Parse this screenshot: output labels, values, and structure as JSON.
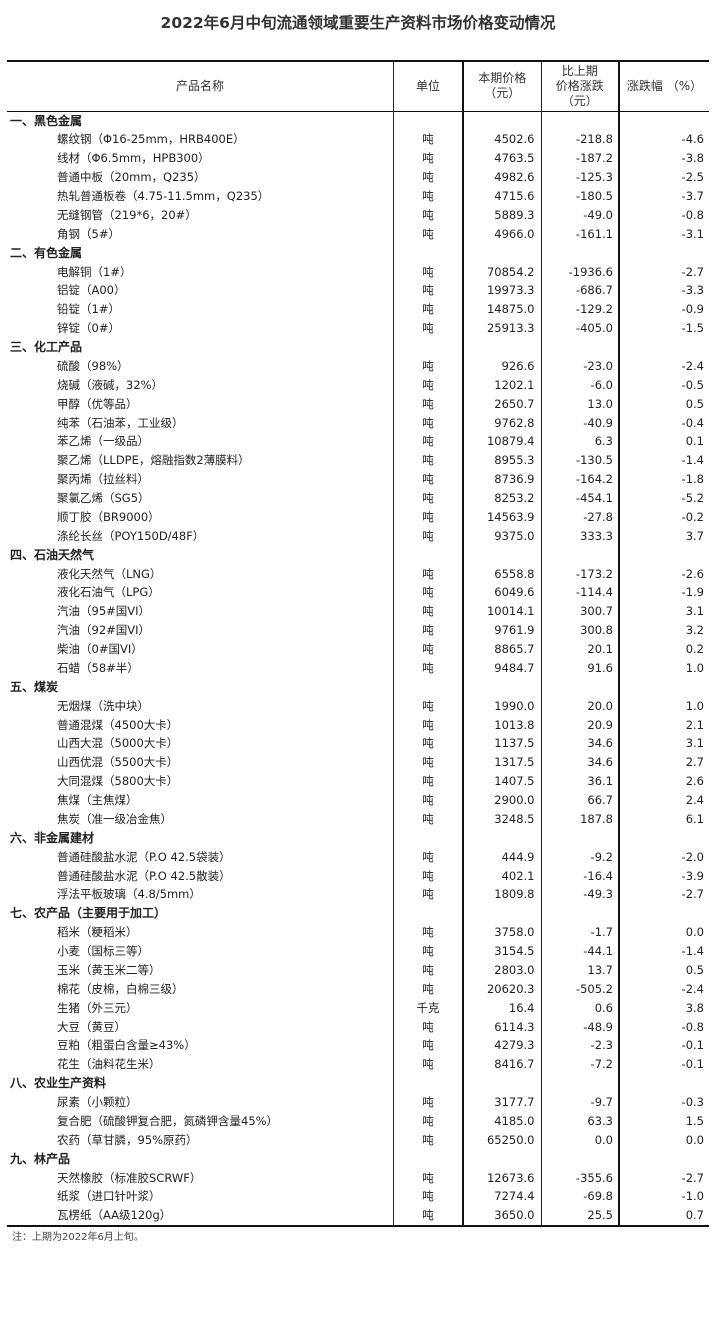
{
  "title": "2022年6月中旬流通领域重要生产资料市场价格变动情况",
  "headers": {
    "name": "产品名称",
    "unit": "单位",
    "price": [
      "本期价格",
      "（元）"
    ],
    "change": [
      "比上期",
      "价格涨跌",
      "（元）"
    ],
    "pct": "涨跌幅 （%）"
  },
  "sections": [
    {
      "label": "一、黑色金属",
      "items": [
        {
          "name": "螺纹钢（Φ16-25mm，HRB400E）",
          "unit": "吨",
          "price": "4502.6",
          "change": "-218.8",
          "pct": "-4.6"
        },
        {
          "name": "线材（Φ6.5mm，HPB300）",
          "unit": "吨",
          "price": "4763.5",
          "change": "-187.2",
          "pct": "-3.8"
        },
        {
          "name": "普通中板（20mm，Q235）",
          "unit": "吨",
          "price": "4982.6",
          "change": "-125.3",
          "pct": "-2.5"
        },
        {
          "name": "热轧普通板卷（4.75-11.5mm，Q235）",
          "unit": "吨",
          "price": "4715.6",
          "change": "-180.5",
          "pct": "-3.7"
        },
        {
          "name": "无缝钢管（219*6，20#）",
          "unit": "吨",
          "price": "5889.3",
          "change": "-49.0",
          "pct": "-0.8"
        },
        {
          "name": "角钢（5#）",
          "unit": "吨",
          "price": "4966.0",
          "change": "-161.1",
          "pct": "-3.1"
        }
      ]
    },
    {
      "label": "二、有色金属",
      "items": [
        {
          "name": "电解铜（1#）",
          "unit": "吨",
          "price": "70854.2",
          "change": "-1936.6",
          "pct": "-2.7"
        },
        {
          "name": "铝锭（A00）",
          "unit": "吨",
          "price": "19973.3",
          "change": "-686.7",
          "pct": "-3.3"
        },
        {
          "name": "铅锭（1#）",
          "unit": "吨",
          "price": "14875.0",
          "change": "-129.2",
          "pct": "-0.9"
        },
        {
          "name": "锌锭（0#）",
          "unit": "吨",
          "price": "25913.3",
          "change": "-405.0",
          "pct": "-1.5"
        }
      ]
    },
    {
      "label": "三、化工产品",
      "items": [
        {
          "name": "硫酸（98%）",
          "unit": "吨",
          "price": "926.6",
          "change": "-23.0",
          "pct": "-2.4"
        },
        {
          "name": "烧碱（液碱，32%）",
          "unit": "吨",
          "price": "1202.1",
          "change": "-6.0",
          "pct": "-0.5"
        },
        {
          "name": "甲醇（优等品）",
          "unit": "吨",
          "price": "2650.7",
          "change": "13.0",
          "pct": "0.5"
        },
        {
          "name": "纯苯（石油苯，工业级）",
          "unit": "吨",
          "price": "9762.8",
          "change": "-40.9",
          "pct": "-0.4"
        },
        {
          "name": "苯乙烯（一级品）",
          "unit": "吨",
          "price": "10879.4",
          "change": "6.3",
          "pct": "0.1"
        },
        {
          "name": "聚乙烯（LLDPE，熔融指数2薄膜料）",
          "unit": "吨",
          "price": "8955.3",
          "change": "-130.5",
          "pct": "-1.4"
        },
        {
          "name": "聚丙烯（拉丝料）",
          "unit": "吨",
          "price": "8736.9",
          "change": "-164.2",
          "pct": "-1.8"
        },
        {
          "name": "聚氯乙烯（SG5）",
          "unit": "吨",
          "price": "8253.2",
          "change": "-454.1",
          "pct": "-5.2"
        },
        {
          "name": "顺丁胶（BR9000）",
          "unit": "吨",
          "price": "14563.9",
          "change": "-27.8",
          "pct": "-0.2"
        },
        {
          "name": "涤纶长丝（POY150D/48F）",
          "unit": "吨",
          "price": "9375.0",
          "change": "333.3",
          "pct": "3.7"
        }
      ]
    },
    {
      "label": "四、石油天然气",
      "items": [
        {
          "name": "液化天然气（LNG）",
          "unit": "吨",
          "price": "6558.8",
          "change": "-173.2",
          "pct": "-2.6"
        },
        {
          "name": "液化石油气（LPG）",
          "unit": "吨",
          "price": "6049.6",
          "change": "-114.4",
          "pct": "-1.9"
        },
        {
          "name": "汽油（95#国VI）",
          "unit": "吨",
          "price": "10014.1",
          "change": "300.7",
          "pct": "3.1"
        },
        {
          "name": "汽油（92#国VI）",
          "unit": "吨",
          "price": "9761.9",
          "change": "300.8",
          "pct": "3.2"
        },
        {
          "name": "柴油（0#国VI）",
          "unit": "吨",
          "price": "8865.7",
          "change": "20.1",
          "pct": "0.2"
        },
        {
          "name": "石蜡（58#半）",
          "unit": "吨",
          "price": "9484.7",
          "change": "91.6",
          "pct": "1.0"
        }
      ]
    },
    {
      "label": "五、煤炭",
      "items": [
        {
          "name": "无烟煤（洗中块）",
          "unit": "吨",
          "price": "1990.0",
          "change": "20.0",
          "pct": "1.0"
        },
        {
          "name": "普通混煤（4500大卡）",
          "unit": "吨",
          "price": "1013.8",
          "change": "20.9",
          "pct": "2.1"
        },
        {
          "name": "山西大混（5000大卡）",
          "unit": "吨",
          "price": "1137.5",
          "change": "34.6",
          "pct": "3.1"
        },
        {
          "name": "山西优混（5500大卡）",
          "unit": "吨",
          "price": "1317.5",
          "change": "34.6",
          "pct": "2.7"
        },
        {
          "name": "大同混煤（5800大卡）",
          "unit": "吨",
          "price": "1407.5",
          "change": "36.1",
          "pct": "2.6"
        },
        {
          "name": "焦煤（主焦煤）",
          "unit": "吨",
          "price": "2900.0",
          "change": "66.7",
          "pct": "2.4"
        },
        {
          "name": "焦炭（准一级冶金焦）",
          "unit": "吨",
          "price": "3248.5",
          "change": "187.8",
          "pct": "6.1"
        }
      ]
    },
    {
      "label": "六、非金属建材",
      "items": [
        {
          "name": "普通硅酸盐水泥（P.O 42.5袋装）",
          "unit": "吨",
          "price": "444.9",
          "change": "-9.2",
          "pct": "-2.0"
        },
        {
          "name": "普通硅酸盐水泥（P.O 42.5散装）",
          "unit": "吨",
          "price": "402.1",
          "change": "-16.4",
          "pct": "-3.9"
        },
        {
          "name": "浮法平板玻璃（4.8/5mm）",
          "unit": "吨",
          "price": "1809.8",
          "change": "-49.3",
          "pct": "-2.7"
        }
      ]
    },
    {
      "label": "七、农产品（主要用于加工）",
      "items": [
        {
          "name": "稻米（粳稻米）",
          "unit": "吨",
          "price": "3758.0",
          "change": "-1.7",
          "pct": "0.0"
        },
        {
          "name": "小麦（国标三等）",
          "unit": "吨",
          "price": "3154.5",
          "change": "-44.1",
          "pct": "-1.4"
        },
        {
          "name": "玉米（黄玉米二等）",
          "unit": "吨",
          "price": "2803.0",
          "change": "13.7",
          "pct": "0.5"
        },
        {
          "name": "棉花（皮棉，白棉三级）",
          "unit": "吨",
          "price": "20620.3",
          "change": "-505.2",
          "pct": "-2.4"
        },
        {
          "name": "生猪（外三元）",
          "unit": "千克",
          "price": "16.4",
          "change": "0.6",
          "pct": "3.8"
        },
        {
          "name": "大豆（黄豆）",
          "unit": "吨",
          "price": "6114.3",
          "change": "-48.9",
          "pct": "-0.8"
        },
        {
          "name": "豆粕（粗蛋白含量≥43%）",
          "unit": "吨",
          "price": "4279.3",
          "change": "-2.3",
          "pct": "-0.1"
        },
        {
          "name": "花生（油料花生米）",
          "unit": "吨",
          "price": "8416.7",
          "change": "-7.2",
          "pct": "-0.1"
        }
      ]
    },
    {
      "label": "八、农业生产资料",
      "items": [
        {
          "name": "尿素（小颗粒）",
          "unit": "吨",
          "price": "3177.7",
          "change": "-9.7",
          "pct": "-0.3"
        },
        {
          "name": "复合肥（硫酸钾复合肥，氮磷钾含量45%）",
          "unit": "吨",
          "price": "4185.0",
          "change": "63.3",
          "pct": "1.5"
        },
        {
          "name": "农药（草甘膦，95%原药）",
          "unit": "吨",
          "price": "65250.0",
          "change": "0.0",
          "pct": "0.0"
        }
      ]
    },
    {
      "label": "九、林产品",
      "items": [
        {
          "name": "天然橡胶（标准胶SCRWF）",
          "unit": "吨",
          "price": "12673.6",
          "change": "-355.6",
          "pct": "-2.7"
        },
        {
          "name": "纸浆（进口针叶浆）",
          "unit": "吨",
          "price": "7274.4",
          "change": "-69.8",
          "pct": "-1.0"
        },
        {
          "name": "瓦楞纸（AA级120g）",
          "unit": "吨",
          "price": "3650.0",
          "change": "25.5",
          "pct": "0.7"
        }
      ]
    }
  ],
  "note": "注：上期为2022年6月上旬。"
}
